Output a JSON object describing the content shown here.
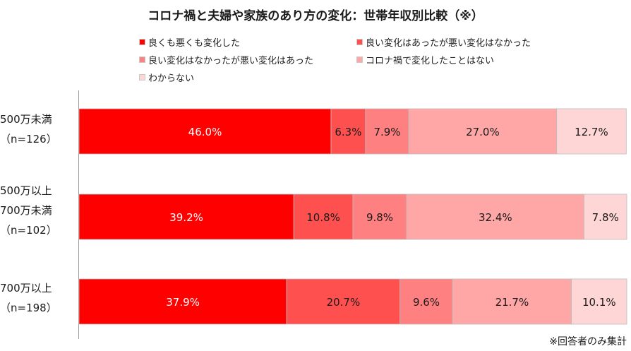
{
  "chart_data": {
    "type": "bar",
    "orientation": "horizontal",
    "stacked": true,
    "title": "コロナ禍と夫婦や家族のあり方の変化：世帯年収別比較（※）",
    "categories": [
      [
        "500万未満",
        "（n=126）"
      ],
      [
        "500万以上",
        "700万未満",
        "（n=102）"
      ],
      [
        "700万以上",
        "（n=198）"
      ]
    ],
    "series": [
      {
        "name": "良くも悪くも変化した",
        "color": "#ff0000",
        "values": [
          46.0,
          39.2,
          37.9
        ]
      },
      {
        "name": "良い変化はあったが悪い変化はなかった",
        "color": "#ff5050",
        "values": [
          6.3,
          10.8,
          20.7
        ]
      },
      {
        "name": "良い変化はなかったが悪い変化はあった",
        "color": "#ff8080",
        "values": [
          7.9,
          9.8,
          9.6
        ]
      },
      {
        "name": "コロナ禍で変化したことはない",
        "color": "#ffa6a6",
        "values": [
          27.0,
          32.4,
          21.7
        ]
      },
      {
        "name": "わからない",
        "color": "#ffd6d6",
        "values": [
          12.7,
          7.8,
          10.1
        ]
      }
    ],
    "xlim": [
      0,
      100
    ],
    "value_suffix": "%",
    "grid": false,
    "legend_placement": "top"
  },
  "footnote": "※回答者のみ集計"
}
